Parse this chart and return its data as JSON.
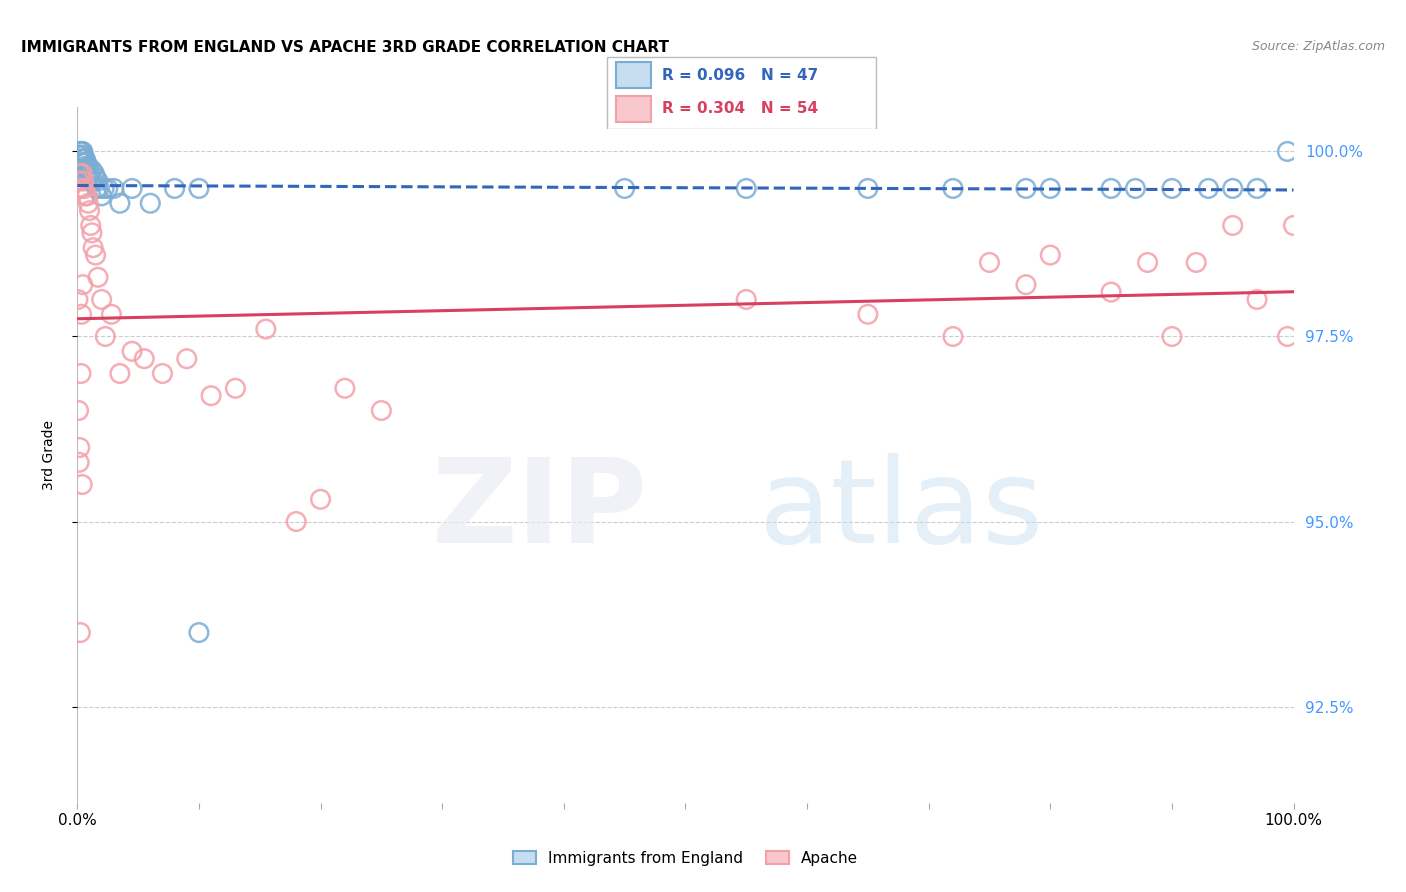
{
  "title": "IMMIGRANTS FROM ENGLAND VS APACHE 3RD GRADE CORRELATION CHART",
  "source": "Source: ZipAtlas.com",
  "ylabel": "3rd Grade",
  "R1": 0.096,
  "N1": 47,
  "R2": 0.304,
  "N2": 54,
  "color_blue": "#7AADD4",
  "color_blue_line": "#3366BB",
  "color_pink": "#F4A0A8",
  "color_pink_line": "#D94060",
  "color_right_axis": "#4499FF",
  "legend_label1": "Immigrants from England",
  "legend_label2": "Apache",
  "xlim": [
    0.0,
    100.0
  ],
  "ylim": [
    91.2,
    100.6
  ],
  "yticks": [
    92.5,
    95.0,
    97.5,
    100.0
  ],
  "ytick_labels": [
    "92.5%",
    "95.0%",
    "97.5%",
    "100.0%"
  ],
  "blue_x": [
    0.1,
    0.2,
    0.25,
    0.3,
    0.35,
    0.4,
    0.45,
    0.5,
    0.55,
    0.6,
    0.65,
    0.7,
    0.75,
    0.8,
    0.85,
    0.9,
    1.0,
    1.1,
    1.2,
    1.3,
    1.4,
    1.5,
    1.6,
    1.7,
    1.8,
    2.0,
    2.2,
    2.5,
    3.0,
    3.5,
    4.5,
    6.0,
    8.0,
    10.0,
    45.0,
    55.0,
    65.0,
    72.0,
    78.0,
    80.0,
    85.0,
    87.0,
    90.0,
    93.0,
    95.0,
    97.0,
    99.5
  ],
  "blue_y": [
    99.95,
    100.0,
    99.95,
    99.9,
    100.0,
    99.85,
    100.0,
    99.95,
    99.9,
    99.85,
    99.9,
    99.8,
    99.85,
    99.7,
    99.75,
    99.8,
    99.7,
    99.6,
    99.75,
    99.6,
    99.7,
    99.65,
    99.5,
    99.6,
    99.5,
    99.4,
    99.5,
    99.5,
    99.5,
    99.3,
    99.5,
    99.3,
    99.5,
    99.5,
    99.5,
    99.5,
    99.5,
    99.5,
    99.5,
    99.5,
    99.5,
    99.5,
    99.5,
    99.5,
    99.5,
    99.5,
    100.0
  ],
  "blue_x_outlier": [
    10.0
  ],
  "blue_y_outlier": [
    93.5
  ],
  "pink_x": [
    0.1,
    0.2,
    0.3,
    0.4,
    0.5,
    0.6,
    0.7,
    0.8,
    0.9,
    1.0,
    1.1,
    1.2,
    1.3,
    1.5,
    1.7,
    2.0,
    2.3,
    2.8,
    3.5,
    4.5,
    5.5,
    7.0,
    9.0,
    11.0,
    13.0,
    15.5,
    18.0,
    20.0,
    22.0,
    25.0,
    55.0,
    65.0,
    72.0,
    75.0,
    78.0,
    80.0,
    85.0,
    88.0,
    90.0,
    92.0,
    95.0,
    97.0,
    99.5,
    100.0
  ],
  "pink_y": [
    99.6,
    99.7,
    99.5,
    99.7,
    99.6,
    99.5,
    99.4,
    99.4,
    99.3,
    99.2,
    99.0,
    98.9,
    98.7,
    98.6,
    98.3,
    98.0,
    97.5,
    97.8,
    97.0,
    97.3,
    97.2,
    97.0,
    97.2,
    96.7,
    96.8,
    97.6,
    95.0,
    95.3,
    96.8,
    96.5,
    98.0,
    97.8,
    97.5,
    98.5,
    98.2,
    98.6,
    98.1,
    98.5,
    97.5,
    98.5,
    99.0,
    98.0,
    97.5,
    99.0
  ],
  "pink_x_low": [
    0.05,
    0.1,
    0.15,
    0.2,
    0.25,
    0.3,
    0.35,
    0.4,
    0.45
  ],
  "pink_y_low": [
    98.0,
    96.5,
    95.8,
    96.0,
    93.5,
    97.0,
    97.8,
    95.5,
    98.2
  ]
}
